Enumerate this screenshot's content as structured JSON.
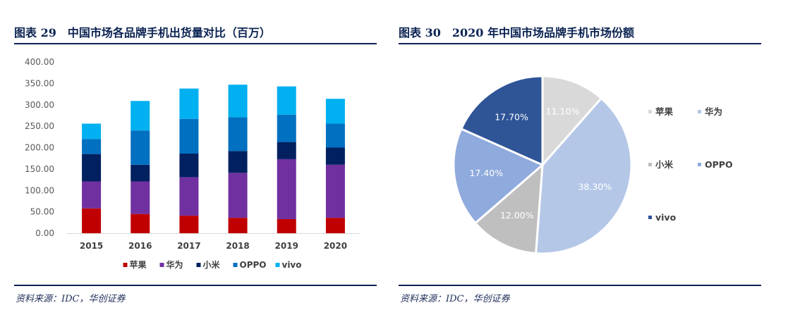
{
  "left_panel": {
    "title": "图表 29　中国市场各品牌手机出货量对比（百万）",
    "source": "资料来源：IDC，华创证券"
  },
  "right_panel": {
    "title": "图表 30　2020 年中国市场品牌手机市场份额",
    "source": "资料来源：IDC，华创证券"
  },
  "colors": {
    "apple": "#c00000",
    "huawei": "#7030a0",
    "xiaomi": "#002060",
    "oppo": "#0070c0",
    "vivo": "#00b0f0",
    "pie_apple": "#d9d9d9",
    "pie_huawei": "#b4c7e7",
    "pie_xiaomi": "#bfbfbf",
    "pie_oppo": "#8faadc",
    "pie_vivo": "#2f5597"
  },
  "chart_data": [
    {
      "type": "bar",
      "stacked": true,
      "categories": [
        "2015",
        "2016",
        "2017",
        "2018",
        "2019",
        "2020"
      ],
      "series": [
        {
          "name": "苹果",
          "values": [
            58,
            45,
            41,
            36,
            33,
            36
          ]
        },
        {
          "name": "华为",
          "values": [
            63,
            76,
            90,
            105,
            140,
            124
          ]
        },
        {
          "name": "小米",
          "values": [
            64,
            39,
            55,
            51,
            40,
            40
          ]
        },
        {
          "name": "OPPO",
          "values": [
            35,
            80,
            81,
            79,
            64,
            56
          ]
        },
        {
          "name": "vivo",
          "values": [
            36,
            69,
            71,
            76,
            66,
            58
          ]
        }
      ],
      "ylim": [
        0,
        400
      ],
      "yticks": [
        "0.00",
        "50.00",
        "100.00",
        "150.00",
        "200.00",
        "250.00",
        "300.00",
        "350.00",
        "400.00"
      ],
      "grid": false,
      "legend_position": "bottom"
    },
    {
      "type": "pie",
      "labels": [
        "苹果",
        "华为",
        "小米",
        "OPPO",
        "vivo"
      ],
      "values": [
        11.1,
        38.3,
        12.0,
        17.4,
        17.7
      ],
      "data_labels": [
        "11.10%",
        "38.30%",
        "12.00%",
        "17.40%",
        "17.70%"
      ],
      "legend_position": "right"
    }
  ]
}
